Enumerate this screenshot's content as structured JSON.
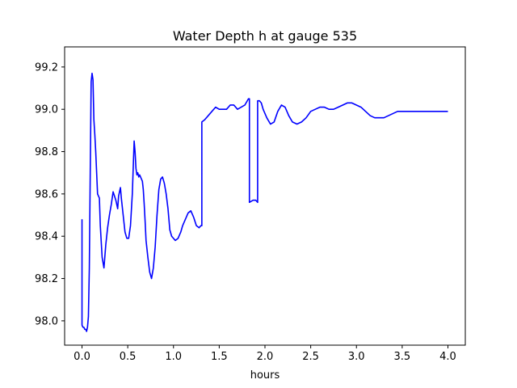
{
  "chart_data": {
    "type": "line",
    "title": "Water Depth h at gauge 535",
    "xlabel": "hours",
    "ylabel": "",
    "xlim": [
      -0.19,
      4.19
    ],
    "ylim": [
      97.885,
      99.295
    ],
    "x_ticks": [
      0.0,
      0.5,
      1.0,
      1.5,
      2.0,
      2.5,
      3.0,
      3.5,
      4.0
    ],
    "x_tick_labels": [
      "0.0",
      "0.5",
      "1.0",
      "1.5",
      "2.0",
      "2.5",
      "3.0",
      "3.5",
      "4.0"
    ],
    "y_ticks": [
      98.0,
      98.2,
      98.4,
      98.6,
      98.8,
      99.0,
      99.2
    ],
    "y_tick_labels": [
      "98.0",
      "98.2",
      "98.4",
      "98.6",
      "98.8",
      "99.0",
      "99.2"
    ],
    "grid": false,
    "series": [
      {
        "color": "#0000ff",
        "x": [
          0.0,
          0.0,
          0.01,
          0.02,
          0.03,
          0.04,
          0.05,
          0.06,
          0.07,
          0.08,
          0.09,
          0.1,
          0.11,
          0.12,
          0.13,
          0.14,
          0.15,
          0.17,
          0.19,
          0.2,
          0.22,
          0.24,
          0.26,
          0.28,
          0.3,
          0.32,
          0.34,
          0.37,
          0.39,
          0.4,
          0.42,
          0.43,
          0.45,
          0.47,
          0.49,
          0.51,
          0.53,
          0.55,
          0.57,
          0.58,
          0.59,
          0.6,
          0.61,
          0.62,
          0.63,
          0.64,
          0.65,
          0.66,
          0.67,
          0.68,
          0.69,
          0.7,
          0.72,
          0.74,
          0.76,
          0.78,
          0.8,
          0.82,
          0.84,
          0.86,
          0.88,
          0.9,
          0.92,
          0.94,
          0.96,
          0.98,
          1.0,
          1.02,
          1.05,
          1.08,
          1.1,
          1.13,
          1.16,
          1.19,
          1.22,
          1.25,
          1.28,
          1.3,
          1.31,
          1.31,
          1.34,
          1.38,
          1.42,
          1.46,
          1.5,
          1.54,
          1.58,
          1.62,
          1.66,
          1.7,
          1.74,
          1.78,
          1.82,
          1.83,
          1.83,
          1.87,
          1.9,
          1.92,
          1.92,
          1.94,
          1.96,
          1.98,
          2.02,
          2.06,
          2.1,
          2.14,
          2.18,
          2.22,
          2.26,
          2.3,
          2.35,
          2.4,
          2.45,
          2.5,
          2.55,
          2.6,
          2.65,
          2.7,
          2.75,
          2.8,
          2.85,
          2.9,
          2.95,
          3.0,
          3.05,
          3.1,
          3.15,
          3.2,
          3.25,
          3.3,
          3.35,
          3.4,
          3.45,
          3.5,
          3.55,
          3.6,
          3.65,
          3.7,
          3.75,
          3.8,
          3.85,
          3.9,
          3.95,
          4.0
        ],
        "y": [
          98.48,
          97.98,
          97.97,
          97.97,
          97.96,
          97.96,
          97.95,
          97.97,
          98.02,
          98.25,
          98.7,
          99.13,
          99.17,
          99.14,
          98.95,
          98.88,
          98.8,
          98.6,
          98.58,
          98.45,
          98.3,
          98.25,
          98.36,
          98.44,
          98.5,
          98.55,
          98.61,
          98.57,
          98.53,
          98.59,
          98.63,
          98.58,
          98.5,
          98.42,
          98.39,
          98.39,
          98.45,
          98.6,
          98.85,
          98.8,
          98.72,
          98.69,
          98.7,
          98.68,
          98.69,
          98.68,
          98.67,
          98.66,
          98.62,
          98.55,
          98.47,
          98.38,
          98.3,
          98.23,
          98.2,
          98.25,
          98.35,
          98.5,
          98.62,
          98.67,
          98.68,
          98.65,
          98.6,
          98.53,
          98.43,
          98.4,
          98.39,
          98.38,
          98.39,
          98.42,
          98.45,
          98.48,
          98.51,
          98.52,
          98.49,
          98.45,
          98.44,
          98.45,
          98.45,
          98.94,
          98.95,
          98.97,
          98.99,
          99.01,
          99.0,
          99.0,
          99.0,
          99.02,
          99.02,
          99.0,
          99.01,
          99.02,
          99.05,
          99.05,
          98.56,
          98.57,
          98.57,
          98.56,
          99.04,
          99.04,
          99.03,
          99.0,
          98.96,
          98.93,
          98.94,
          98.99,
          99.02,
          99.01,
          98.97,
          98.94,
          98.93,
          98.94,
          98.96,
          98.99,
          99.0,
          99.01,
          99.01,
          99.0,
          99.0,
          99.01,
          99.02,
          99.03,
          99.03,
          99.02,
          99.01,
          98.99,
          98.97,
          98.96,
          98.96,
          98.96,
          98.97,
          98.98,
          98.99,
          98.99,
          98.99,
          98.99,
          98.99,
          98.99,
          98.99,
          98.99,
          98.99,
          98.99,
          98.99,
          98.99
        ]
      }
    ]
  }
}
